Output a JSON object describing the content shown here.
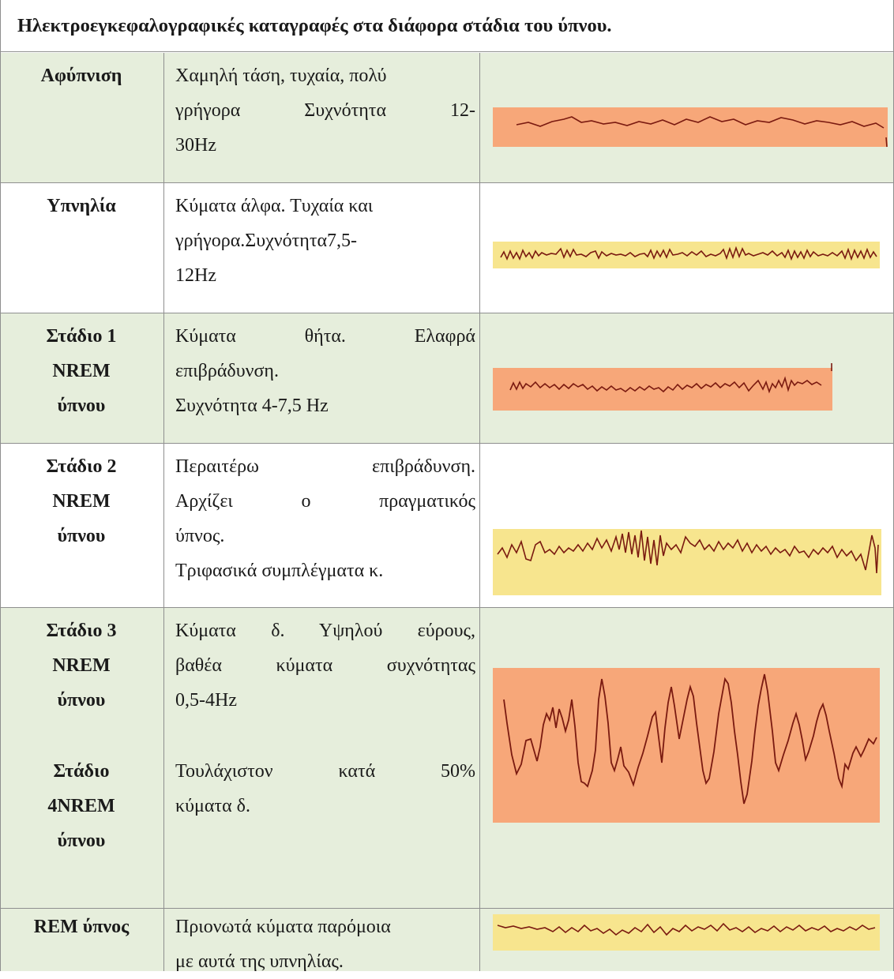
{
  "title": "Ηλεκτροεγκεφαλογραφικές καταγραφές στα διάφορα στάδια του ύπνου.",
  "rows": [
    {
      "stage": [
        "Αφύπνιση"
      ],
      "desc": [
        "Χαμηλή τάση, τυχαία, πολύ",
        "γρήγορα   Συχνότητα   12-",
        "30Hz"
      ]
    },
    {
      "stage": [
        "Υπνηλία"
      ],
      "desc": [
        "Κύματα άλφα. Τυχαία και",
        "γρήγορα.Συχνότητα7,5-",
        "12Hz"
      ]
    },
    {
      "stage": [
        "Στάδιο 1",
        "NREM",
        "ύπνου"
      ],
      "desc": [
        "Κύματα   θήτα.   Ελαφρά",
        "επιβράδυνση.",
        "Συχνότητα 4-7,5 Hz"
      ]
    },
    {
      "stage": [
        "Στάδιο 2",
        "NREM",
        "ύπνου"
      ],
      "desc": [
        "Περαιτέρω   επιβράδυνση.",
        "Αρχίζει   ο   πραγματικός",
        "ύπνος.",
        "Τριφασικά συμπλέγματα κ."
      ]
    },
    {
      "stage": [
        "Στάδιο 3",
        "NREM",
        "ύπνου"
      ],
      "desc": [
        "Κύματα δ. Υψηλού εύρους,",
        "βαθέα κύματα συχνότητας",
        "0,5-4Hz"
      ]
    },
    {
      "stage": [
        "Στάδιο",
        "4NREM",
        "ύπνου"
      ],
      "desc": [
        "Τουλάχιστον   κατά   50%",
        "κύματα δ."
      ]
    },
    {
      "stage": [
        "REM ύπνος"
      ],
      "desc": [
        "Πριονωτά κύματα παρόμοια",
        "με αυτά της υπνηλίας."
      ]
    }
  ],
  "colors": {
    "row_green": "#e6eedc",
    "grid": "#8f8f8f",
    "eeg_orange": "#f7a779",
    "eeg_yellow": "#f7e58e",
    "eeg_trace": "#7a1a10"
  }
}
